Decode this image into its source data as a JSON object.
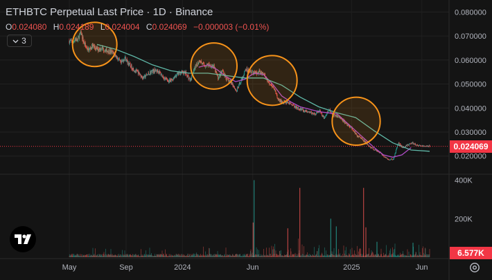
{
  "header": {
    "title": "ETHBTC Perpetual Last Price · 1D · Binance",
    "ohlc": [
      {
        "key": "O",
        "value": "0.024080"
      },
      {
        "key": "H",
        "value": "0.024189"
      },
      {
        "key": "L",
        "value": "0.024004"
      },
      {
        "key": "C",
        "value": "0.024069"
      },
      {
        "key": "",
        "value": "−0.000003 (−0.01%)"
      }
    ],
    "indicator_count": "3"
  },
  "colors": {
    "background": "#141414",
    "up": "#26a69a",
    "down": "#ef5350",
    "ma": "#5fb8a8",
    "ma_short": "#b04cc8",
    "circle": "#f7931a",
    "price_tag": "#f23645"
  },
  "icons": [
    "chevron-down-icon",
    "tradingview-logo",
    "settings-gear-icon"
  ],
  "chart_data": {
    "type": "candlestick",
    "title": "ETHBTC Perpetual Last Price · 1D · Binance",
    "last_price": 0.024069,
    "last_price_label": "0.024069",
    "y_axis_ticks": [
      "0.080000",
      "0.070000",
      "0.060000",
      "0.050000",
      "0.040000",
      "0.030000",
      "0.020000"
    ],
    "y_axis_values": [
      0.08,
      0.07,
      0.06,
      0.05,
      0.04,
      0.03,
      0.02
    ],
    "ylim": [
      0.013,
      0.085
    ],
    "x_axis_ticks": [
      "May",
      "Sep",
      "2024",
      "Jun",
      "2025",
      "Jun"
    ],
    "x_tick_days": [
      0,
      123,
      245,
      397,
      611,
      763
    ],
    "total_days": 780,
    "price_path": {
      "day": [
        0,
        8,
        12,
        18,
        22,
        26,
        30,
        36,
        42,
        50,
        60,
        70,
        80,
        90,
        100,
        112,
        120,
        130,
        140,
        150,
        160,
        170,
        180,
        192,
        205,
        218,
        230,
        242,
        252,
        262,
        272,
        282,
        292,
        302,
        312,
        322,
        332,
        342,
        352,
        362,
        372,
        382,
        392,
        402,
        412,
        422,
        432,
        442,
        452,
        462,
        472,
        482,
        492,
        502,
        512,
        522,
        532,
        542,
        552,
        562,
        572,
        582,
        592,
        602,
        612,
        622,
        632,
        642,
        652,
        662,
        672,
        682,
        692,
        702,
        712,
        722,
        732,
        742,
        752,
        762,
        772,
        780
      ],
      "close": [
        0.068,
        0.067,
        0.069,
        0.068,
        0.0705,
        0.071,
        0.068,
        0.0655,
        0.064,
        0.066,
        0.0645,
        0.065,
        0.064,
        0.0635,
        0.062,
        0.0585,
        0.061,
        0.058,
        0.056,
        0.0545,
        0.0525,
        0.054,
        0.0555,
        0.0555,
        0.0525,
        0.051,
        0.0535,
        0.055,
        0.0545,
        0.0515,
        0.0565,
        0.06,
        0.0575,
        0.058,
        0.0575,
        0.0525,
        0.0555,
        0.0515,
        0.0505,
        0.047,
        0.0515,
        0.056,
        0.0555,
        0.0545,
        0.055,
        0.054,
        0.0505,
        0.0485,
        0.0435,
        0.0425,
        0.0425,
        0.0415,
        0.04,
        0.0395,
        0.0385,
        0.038,
        0.0375,
        0.039,
        0.0355,
        0.0395,
        0.037,
        0.0365,
        0.035,
        0.033,
        0.0315,
        0.0285,
        0.0275,
        0.0255,
        0.0235,
        0.0225,
        0.0215,
        0.0195,
        0.0185,
        0.0188,
        0.0255,
        0.0235,
        0.0245,
        0.0255,
        0.0245,
        0.0242,
        0.0241,
        0.02407
      ]
    },
    "moving_average_long": {
      "day": [
        60,
        100,
        140,
        180,
        220,
        260,
        300,
        340,
        380,
        420,
        460,
        500,
        540,
        580,
        620,
        660,
        700,
        740,
        780
      ],
      "value": [
        0.0665,
        0.0645,
        0.0615,
        0.058,
        0.0555,
        0.0545,
        0.0545,
        0.0535,
        0.0525,
        0.0525,
        0.0495,
        0.0445,
        0.0405,
        0.038,
        0.036,
        0.0305,
        0.0255,
        0.0225,
        0.022
      ]
    },
    "moving_average_short": {
      "day": [
        280,
        300,
        320,
        340,
        360,
        380,
        400,
        420,
        440,
        460,
        480,
        500,
        520,
        540,
        560,
        580,
        600,
        620,
        640,
        660,
        680,
        700,
        720,
        740
      ],
      "value": [
        0.057,
        0.058,
        0.056,
        0.053,
        0.051,
        0.052,
        0.0545,
        0.054,
        0.05,
        0.045,
        0.0425,
        0.0405,
        0.0395,
        0.0385,
        0.038,
        0.0375,
        0.034,
        0.0305,
        0.027,
        0.0235,
        0.0205,
        0.0195,
        0.0205,
        0.0235
      ]
    },
    "highlight_circles": [
      {
        "center_day": 55,
        "center_value": 0.0665,
        "radius_days": 48
      },
      {
        "center_day": 313,
        "center_value": 0.0575,
        "radius_days": 50
      },
      {
        "center_day": 439,
        "center_value": 0.0515,
        "radius_days": 54
      },
      {
        "center_day": 621,
        "center_value": 0.0345,
        "radius_days": 52
      }
    ],
    "volume": {
      "axis_ticks": [
        "400K",
        "200K"
      ],
      "axis_values": [
        400000,
        200000
      ],
      "ylim": [
        0,
        420000
      ],
      "last_label": "6.577K",
      "spikes": [
        {
          "day": 400,
          "value": 400000,
          "dir": "up"
        },
        {
          "day": 398,
          "value": 180000,
          "dir": "down"
        },
        {
          "day": 473,
          "value": 150000,
          "dir": "down"
        },
        {
          "day": 499,
          "value": 360000,
          "dir": "down"
        },
        {
          "day": 566,
          "value": 200000,
          "dir": "up"
        },
        {
          "day": 578,
          "value": 160000,
          "dir": "up"
        },
        {
          "day": 637,
          "value": 360000,
          "dir": "down"
        },
        {
          "day": 642,
          "value": 155000,
          "dir": "down"
        },
        {
          "day": 666,
          "value": 80000,
          "dir": "up"
        },
        {
          "day": 744,
          "value": 75000,
          "dir": "up"
        }
      ]
    }
  }
}
